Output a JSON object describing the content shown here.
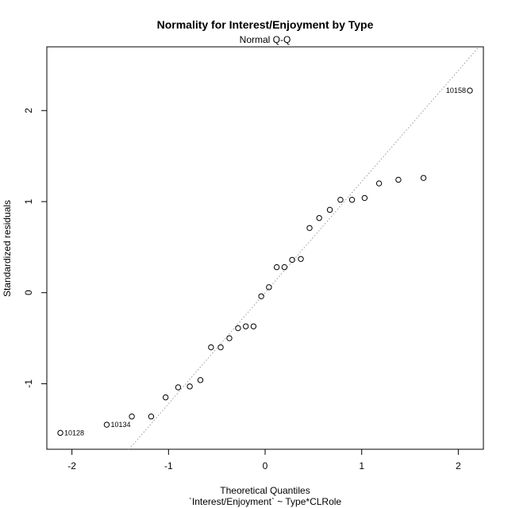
{
  "chart_data": {
    "type": "scatter",
    "title": "Normality for Interest/Enjoyment by Type",
    "subtitle": "Normal Q-Q",
    "xlabel": "Theoretical Quantiles",
    "xlabel2": "`Interest/Enjoyment` ~ Type*CLRole",
    "ylabel": "Standardized residuals",
    "xlim": [
      -2.26,
      2.26
    ],
    "ylim": [
      -1.72,
      2.7
    ],
    "xticks": [
      -2,
      -1,
      0,
      1,
      2
    ],
    "yticks": [
      -1,
      0,
      1,
      2
    ],
    "grid": false,
    "points": [
      {
        "x": -2.12,
        "y": -1.54
      },
      {
        "x": -1.64,
        "y": -1.45
      },
      {
        "x": -1.38,
        "y": -1.36
      },
      {
        "x": -1.18,
        "y": -1.36
      },
      {
        "x": -1.03,
        "y": -1.15
      },
      {
        "x": -0.9,
        "y": -1.04
      },
      {
        "x": -0.78,
        "y": -1.03
      },
      {
        "x": -0.67,
        "y": -0.96
      },
      {
        "x": -0.56,
        "y": -0.6
      },
      {
        "x": -0.46,
        "y": -0.6
      },
      {
        "x": -0.37,
        "y": -0.5
      },
      {
        "x": -0.28,
        "y": -0.39
      },
      {
        "x": -0.2,
        "y": -0.37
      },
      {
        "x": -0.12,
        "y": -0.37
      },
      {
        "x": -0.04,
        "y": -0.04
      },
      {
        "x": 0.04,
        "y": 0.06
      },
      {
        "x": 0.12,
        "y": 0.28
      },
      {
        "x": 0.2,
        "y": 0.28
      },
      {
        "x": 0.28,
        "y": 0.36
      },
      {
        "x": 0.37,
        "y": 0.37
      },
      {
        "x": 0.46,
        "y": 0.71
      },
      {
        "x": 0.56,
        "y": 0.82
      },
      {
        "x": 0.67,
        "y": 0.91
      },
      {
        "x": 0.78,
        "y": 1.02
      },
      {
        "x": 0.9,
        "y": 1.02
      },
      {
        "x": 1.03,
        "y": 1.04
      },
      {
        "x": 1.18,
        "y": 1.2
      },
      {
        "x": 1.38,
        "y": 1.24
      },
      {
        "x": 1.64,
        "y": 1.26
      },
      {
        "x": 2.12,
        "y": 2.22
      }
    ],
    "point_labels": [
      {
        "text": "10128",
        "x": -2.12,
        "y": -1.54,
        "side": "right"
      },
      {
        "text": "10134",
        "x": -1.64,
        "y": -1.45,
        "side": "right"
      },
      {
        "text": "10158",
        "x": 2.12,
        "y": 2.22,
        "side": "left"
      }
    ],
    "reference_line": {
      "intercept": 0.0,
      "slope": 1.22,
      "style": "dotted",
      "color": "#999999"
    }
  }
}
